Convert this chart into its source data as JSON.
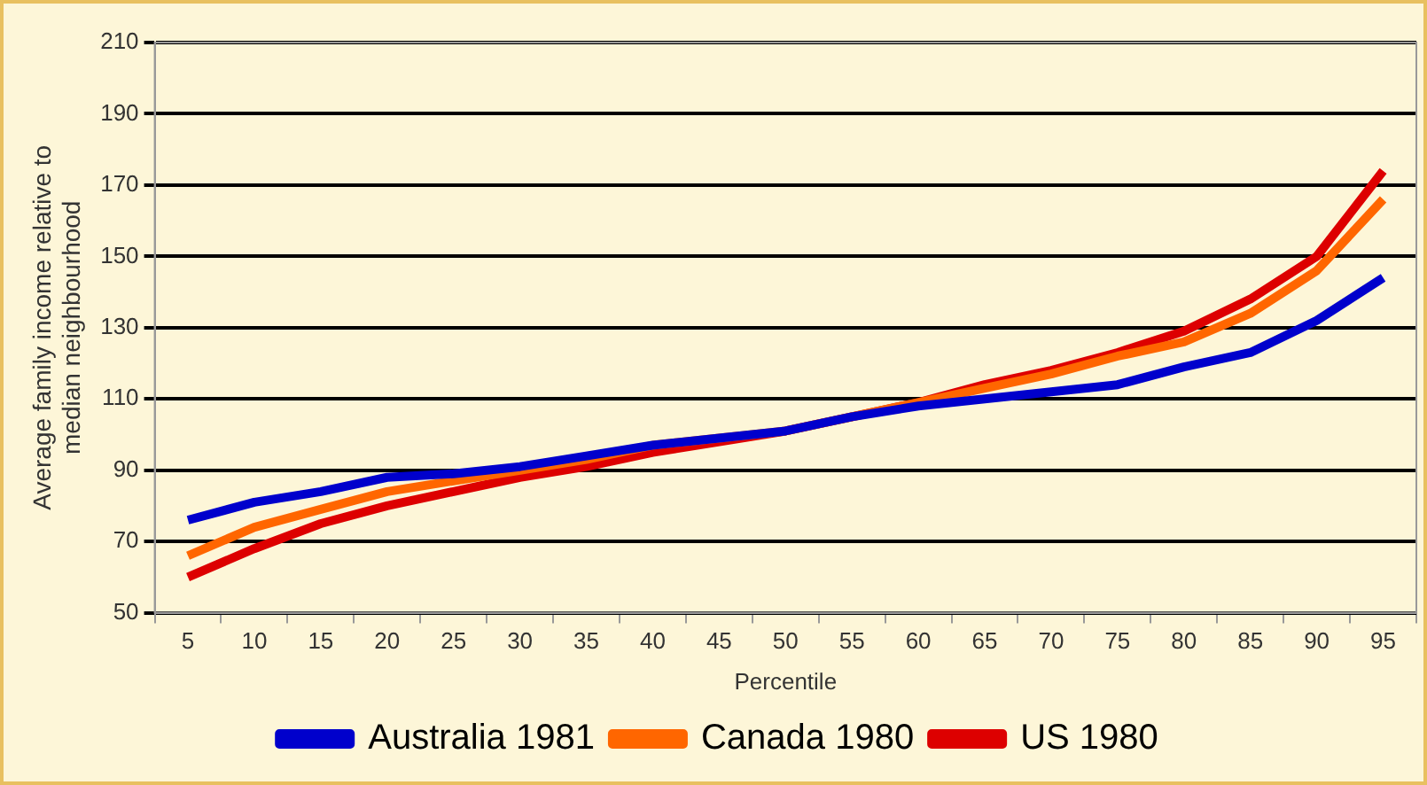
{
  "chart_data": {
    "type": "line",
    "xlabel": "Percentile",
    "ylabel": "Average family income relative to\nmedian neighbourhood",
    "categories": [
      "5",
      "10",
      "15",
      "20",
      "25",
      "30",
      "35",
      "40",
      "45",
      "50",
      "55",
      "60",
      "65",
      "70",
      "75",
      "80",
      "85",
      "90",
      "95"
    ],
    "series": [
      {
        "name": "Australia 1981",
        "color": "#0000cc",
        "values": [
          76,
          81,
          84,
          88,
          89,
          91,
          94,
          97,
          99,
          101,
          105,
          108,
          110,
          112,
          114,
          119,
          123,
          132,
          144
        ]
      },
      {
        "name": "Canada 1980",
        "color": "#ff6600",
        "values": [
          66,
          74,
          79,
          84,
          87,
          90,
          93,
          97,
          99,
          101,
          105,
          109,
          113,
          117,
          122,
          126,
          134,
          146,
          166
        ]
      },
      {
        "name": "US 1980",
        "color": "#dd0000",
        "values": [
          60,
          68,
          75,
          80,
          84,
          88,
          91,
          95,
          98,
          101,
          105,
          109,
          114,
          118,
          123,
          129,
          138,
          150,
          174
        ]
      }
    ],
    "ylim": [
      50,
      210
    ],
    "yticks": [
      50,
      70,
      90,
      110,
      130,
      150,
      170,
      190,
      210
    ],
    "grid": "y",
    "legend": "bottom",
    "marker": "none",
    "line_style": "solid"
  }
}
